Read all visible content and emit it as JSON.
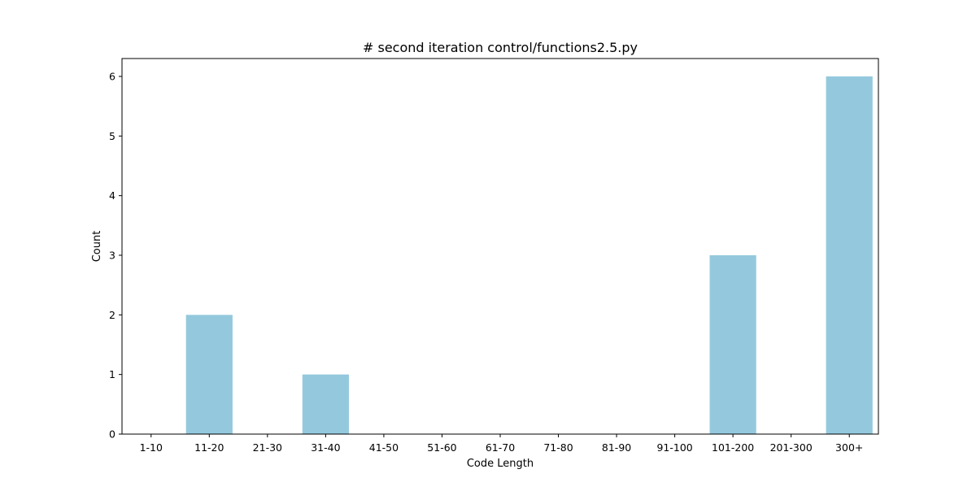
{
  "chart_data": {
    "type": "bar",
    "title": "# second iteration control/functions2.5.py",
    "xlabel": "Code Length",
    "ylabel": "Count",
    "categories": [
      "1-10",
      "11-20",
      "21-30",
      "31-40",
      "41-50",
      "51-60",
      "61-70",
      "71-80",
      "81-90",
      "91-100",
      "101-200",
      "201-300",
      "300+"
    ],
    "values": [
      0,
      2,
      0,
      1,
      0,
      0,
      0,
      0,
      0,
      0,
      3,
      0,
      6
    ],
    "ylim": [
      0,
      6.3
    ],
    "yticks": [
      0,
      1,
      2,
      3,
      4,
      5,
      6
    ],
    "grid": false,
    "legend": "none",
    "bar_color": "#94c9dd"
  }
}
